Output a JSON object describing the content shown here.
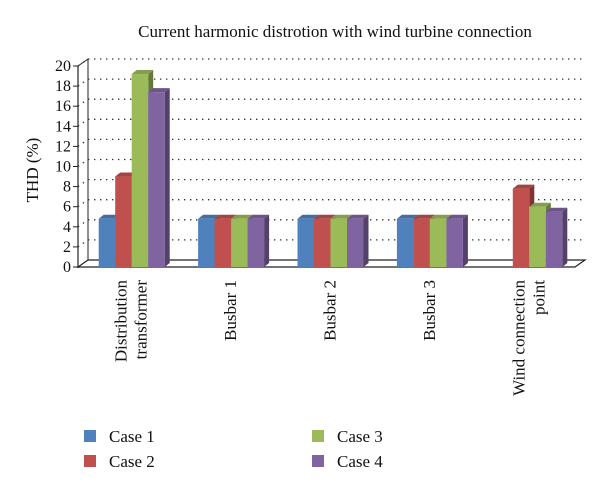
{
  "chart_data": {
    "type": "bar",
    "title": "Current harmonic distrotion with wind turbine connection",
    "xlabel": "",
    "ylabel": "THD (%)",
    "ylim": [
      0,
      20
    ],
    "yticks": [
      "0",
      "2",
      "4",
      "6",
      "8",
      "10",
      "12",
      "14",
      "16",
      "18",
      "20"
    ],
    "categories": [
      [
        "Distribution",
        "transformer"
      ],
      [
        "Busbar 1"
      ],
      [
        "Busbar 2"
      ],
      [
        "Busbar 3"
      ],
      [
        "Wind connection",
        "point"
      ]
    ],
    "series": [
      {
        "name": "Case 1",
        "color": "#4F81BD",
        "values": [
          4.8,
          4.8,
          4.8,
          4.8,
          0
        ]
      },
      {
        "name": "Case 2",
        "color": "#C0504D",
        "values": [
          9.0,
          4.8,
          4.8,
          4.8,
          7.8
        ]
      },
      {
        "name": "Case 3",
        "color": "#9BBB59",
        "values": [
          19.2,
          4.8,
          4.8,
          4.8,
          6.0
        ]
      },
      {
        "name": "Case 4",
        "color": "#8064A2",
        "values": [
          17.4,
          4.8,
          4.8,
          4.8,
          5.5
        ]
      }
    ],
    "grid": true,
    "legend_position": "bottom"
  }
}
